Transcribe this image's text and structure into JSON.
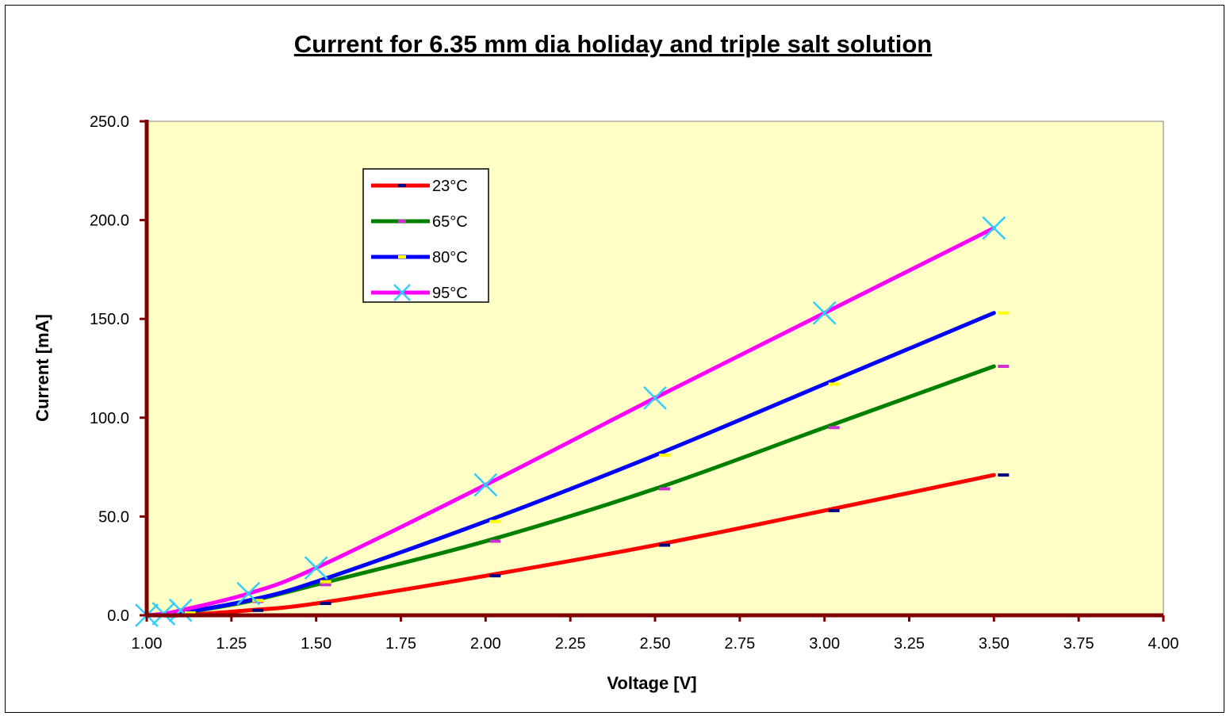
{
  "chart_data": {
    "type": "line",
    "title": "Current for 6.35 mm dia holiday and triple salt solution",
    "xlabel": "Voltage [V]",
    "ylabel": "Current [mA]",
    "xlim": [
      1.0,
      4.0
    ],
    "ylim": [
      0,
      250
    ],
    "x_ticks": [
      "1.00",
      "1.25",
      "1.50",
      "1.75",
      "2.00",
      "2.25",
      "2.50",
      "2.75",
      "3.00",
      "3.25",
      "3.50",
      "3.75",
      "4.00"
    ],
    "y_ticks": [
      "0.0",
      "50.0",
      "100.0",
      "150.0",
      "200.0",
      "250.0"
    ],
    "plot_background": "#ffffc6",
    "axis_color": "#800000",
    "legend_position": "top-left",
    "series": [
      {
        "name": "23°C",
        "color": "#ff0000",
        "marker": "dash",
        "marker_color": "#000080",
        "x": [
          1.0,
          1.05,
          1.1,
          1.3,
          1.5,
          2.0,
          2.5,
          3.0,
          3.5
        ],
        "y": [
          0.0,
          0.0,
          0.0,
          2.5,
          6.0,
          20.0,
          35.5,
          53.0,
          71.0
        ]
      },
      {
        "name": "65°C",
        "color": "#008000",
        "marker": "dash",
        "marker_color": "#cc33cc",
        "x": [
          1.0,
          1.05,
          1.1,
          1.3,
          1.5,
          2.0,
          2.5,
          3.0,
          3.5
        ],
        "y": [
          0.0,
          0.2,
          1.0,
          7.0,
          15.5,
          37.5,
          64.0,
          95.0,
          126.0
        ]
      },
      {
        "name": "80°C",
        "color": "#0000ff",
        "marker": "dash",
        "marker_color": "#ffff00",
        "x": [
          1.0,
          1.05,
          1.1,
          1.3,
          1.5,
          2.0,
          2.5,
          3.0,
          3.5
        ],
        "y": [
          0.0,
          0.3,
          1.2,
          7.5,
          17.0,
          47.5,
          81.0,
          117.0,
          153.0
        ]
      },
      {
        "name": "95°C",
        "color": "#ff00ff",
        "marker": "x",
        "marker_color": "#33ccff",
        "x": [
          1.0,
          1.05,
          1.1,
          1.3,
          1.5,
          2.0,
          2.5,
          3.0,
          3.5
        ],
        "y": [
          0.0,
          0.8,
          2.5,
          11.0,
          24.0,
          66.0,
          110.0,
          153.0,
          196.0
        ]
      }
    ]
  }
}
